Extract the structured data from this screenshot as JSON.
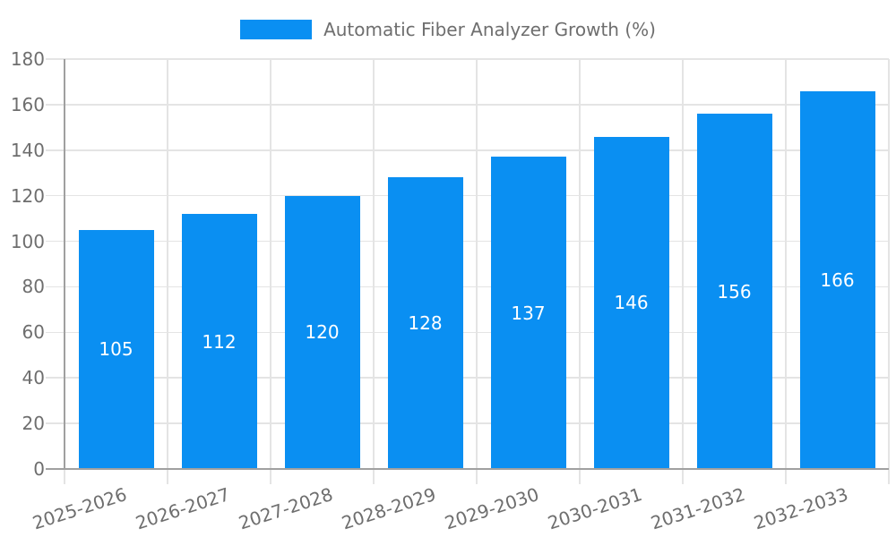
{
  "chart_data": {
    "type": "bar",
    "title": "",
    "legend": "Automatic Fiber Analyzer Growth (%)",
    "categories": [
      "2025-2026",
      "2026-2027",
      "2027-2028",
      "2028-2029",
      "2029-2030",
      "2030-2031",
      "2031-2032",
      "2032-2033"
    ],
    "values": [
      105,
      112,
      120,
      128,
      137,
      146,
      156,
      166
    ],
    "xlabel": "",
    "ylabel": "",
    "ylim": [
      0,
      180
    ],
    "ytick_step": 20,
    "yticks": [
      0,
      20,
      40,
      60,
      80,
      100,
      120,
      140,
      160,
      180
    ],
    "grid": true,
    "legend_position": "top-center",
    "colors": {
      "bar": "#0a8ff2",
      "bar_label": "#ffffff",
      "grid": "#e4e4e4",
      "axis": "#a0a0a0",
      "tick_label": "#6e6e6e",
      "legend_text": "#6e6e6e",
      "background": "#ffffff"
    }
  }
}
